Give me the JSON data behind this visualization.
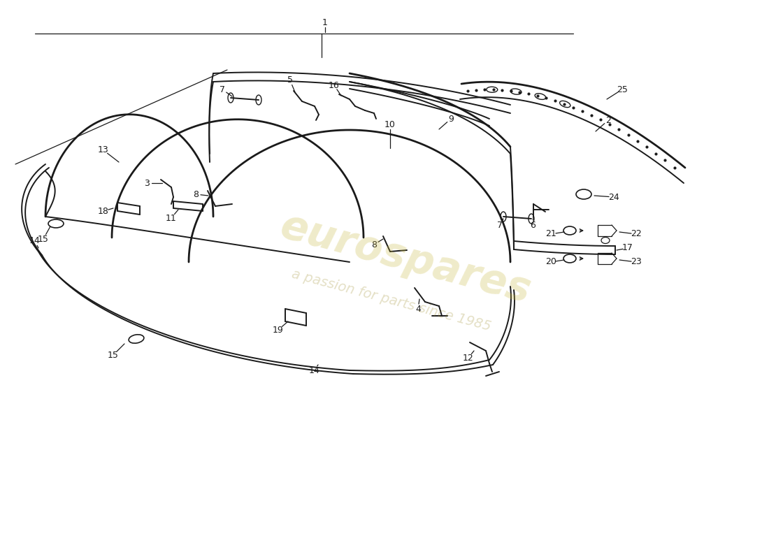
{
  "background_color": "#ffffff",
  "line_color": "#1a1a1a",
  "watermark_color1": "#c8b840",
  "watermark_color2": "#a09030",
  "watermark_text1": "eurospares",
  "watermark_text2": "a passion for parts since 1985",
  "figsize": [
    11.0,
    8.0
  ],
  "dpi": 100
}
